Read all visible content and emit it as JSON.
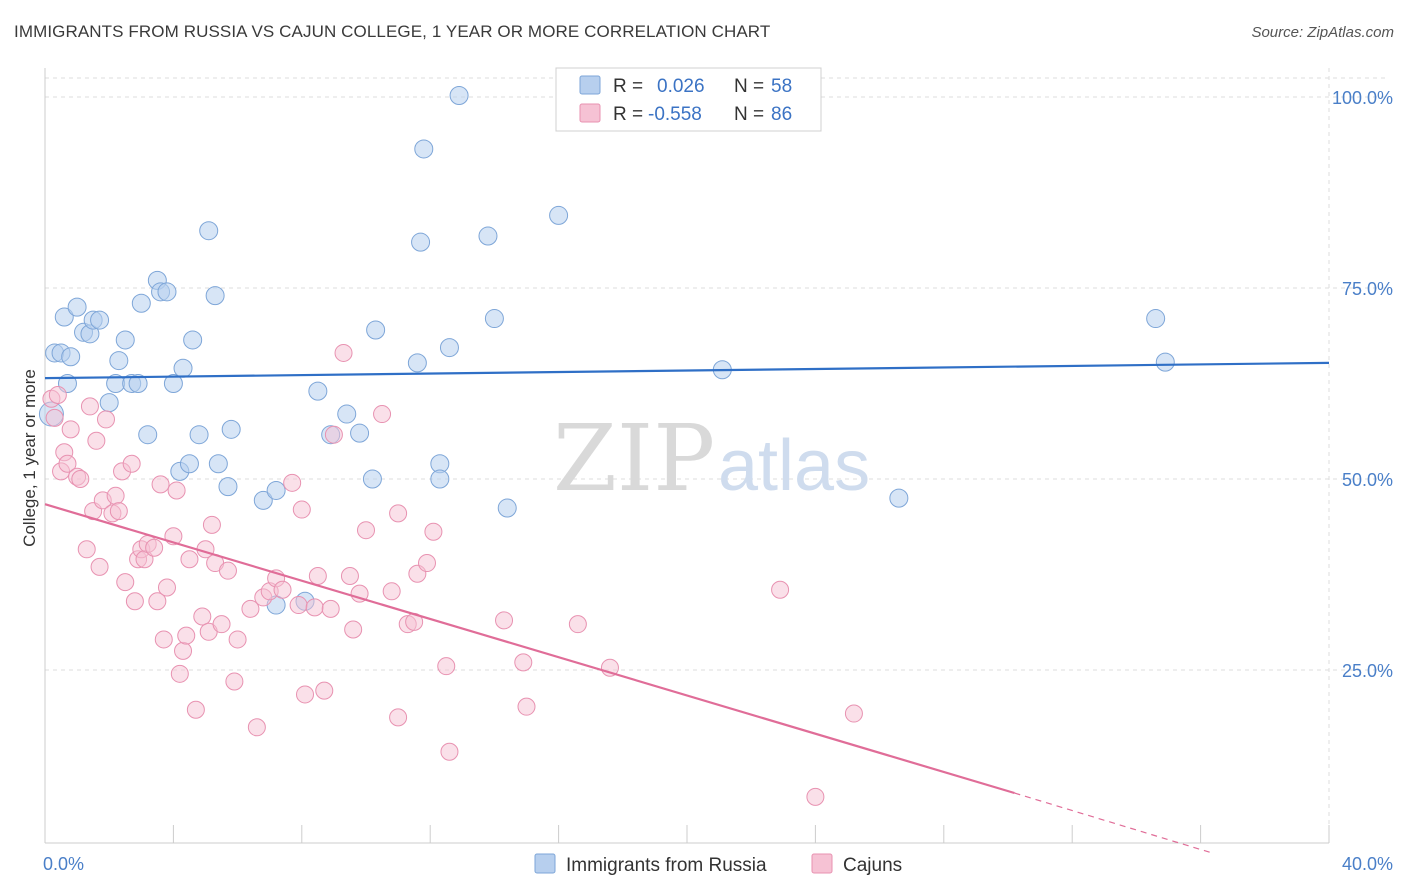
{
  "title": "IMMIGRANTS FROM RUSSIA VS CAJUN COLLEGE, 1 YEAR OR MORE CORRELATION CHART",
  "source": "Source: ZipAtlas.com",
  "watermark": {
    "zip": "ZIP",
    "atlas": "atlas"
  },
  "legend": {
    "rows": [
      {
        "r_label": "R =",
        "r_value": "0.026",
        "n_label": "N =",
        "n_value": "58"
      },
      {
        "r_label": "R =",
        "r_value": "-0.558",
        "n_label": "N =",
        "n_value": "86"
      }
    ]
  },
  "colors": {
    "blue_fill": "#b7cfee",
    "blue_stroke": "#7ea6d8",
    "blue_line": "#2f6fc6",
    "pink_fill": "#f6c2d4",
    "pink_stroke": "#e892b1",
    "pink_line": "#e06d98",
    "grid": "#dddddd",
    "axis_text": "#4a7fc8"
  },
  "chart_data": {
    "type": "scatter",
    "title": "IMMIGRANTS FROM RUSSIA VS CAJUN COLLEGE, 1 YEAR OR MORE CORRELATION CHART",
    "xlabel": "",
    "ylabel": "College, 1 year or more",
    "xlim": [
      0,
      40
    ],
    "ylim": [
      2,
      102
    ],
    "x_ticks": [
      0,
      40
    ],
    "x_tick_labels": [
      "0.0%",
      "40.0%"
    ],
    "y_ticks": [
      25,
      50,
      75,
      100
    ],
    "y_tick_labels": [
      "25.0%",
      "50.0%",
      "75.0%",
      "100.0%"
    ],
    "grid": true,
    "legend_position": "top-center",
    "series": [
      {
        "name": "Immigrants from Russia",
        "R": 0.026,
        "N": 58,
        "trend": {
          "x": [
            0,
            40
          ],
          "y": [
            63.2,
            65.2
          ]
        },
        "points": [
          [
            0.2,
            58.5
          ],
          [
            0.3,
            66.5
          ],
          [
            0.5,
            66.5
          ],
          [
            0.6,
            71.2
          ],
          [
            0.7,
            62.5
          ],
          [
            0.8,
            66.0
          ],
          [
            1.0,
            72.5
          ],
          [
            1.2,
            69.2
          ],
          [
            1.4,
            69.0
          ],
          [
            1.5,
            70.8
          ],
          [
            1.7,
            70.8
          ],
          [
            2.0,
            60.0
          ],
          [
            2.2,
            62.5
          ],
          [
            2.3,
            65.5
          ],
          [
            2.5,
            68.2
          ],
          [
            2.7,
            62.5
          ],
          [
            2.9,
            62.5
          ],
          [
            3.0,
            73.0
          ],
          [
            3.2,
            55.8
          ],
          [
            3.5,
            76.0
          ],
          [
            3.6,
            74.5
          ],
          [
            3.8,
            74.5
          ],
          [
            4.0,
            62.5
          ],
          [
            4.2,
            51.0
          ],
          [
            4.3,
            64.5
          ],
          [
            4.5,
            52.0
          ],
          [
            4.6,
            68.2
          ],
          [
            4.8,
            55.8
          ],
          [
            5.1,
            82.5
          ],
          [
            5.3,
            74.0
          ],
          [
            5.4,
            52.0
          ],
          [
            5.7,
            49.0
          ],
          [
            5.8,
            56.5
          ],
          [
            6.8,
            47.2
          ],
          [
            7.2,
            48.5
          ],
          [
            7.2,
            33.5
          ],
          [
            8.1,
            34.0
          ],
          [
            8.5,
            61.5
          ],
          [
            8.9,
            55.8
          ],
          [
            9.4,
            58.5
          ],
          [
            9.8,
            56.0
          ],
          [
            10.2,
            50.0
          ],
          [
            10.3,
            69.5
          ],
          [
            11.6,
            65.2
          ],
          [
            11.7,
            81.0
          ],
          [
            11.8,
            93.2
          ],
          [
            12.3,
            52.0
          ],
          [
            12.3,
            50.0
          ],
          [
            12.6,
            67.2
          ],
          [
            12.9,
            100.2
          ],
          [
            13.8,
            81.8
          ],
          [
            14.0,
            71.0
          ],
          [
            14.4,
            46.2
          ],
          [
            16.0,
            84.5
          ],
          [
            21.1,
            64.3
          ],
          [
            26.6,
            47.5
          ],
          [
            34.6,
            71.0
          ],
          [
            34.9,
            65.3
          ]
        ]
      },
      {
        "name": "Cajuns",
        "R": -0.558,
        "N": 86,
        "trend": {
          "x": [
            0,
            30.2
          ],
          "y": [
            46.7,
            8.9
          ]
        },
        "trend_dashed": {
          "x": [
            30.2,
            36.4
          ],
          "y": [
            8.9,
            1.0
          ]
        },
        "points": [
          [
            0.2,
            60.5
          ],
          [
            0.3,
            58.0
          ],
          [
            0.4,
            61.0
          ],
          [
            0.5,
            51.0
          ],
          [
            0.6,
            53.5
          ],
          [
            0.7,
            52.0
          ],
          [
            0.8,
            56.5
          ],
          [
            1.0,
            50.3
          ],
          [
            1.1,
            50.0
          ],
          [
            1.3,
            40.8
          ],
          [
            1.4,
            59.5
          ],
          [
            1.5,
            45.8
          ],
          [
            1.6,
            55.0
          ],
          [
            1.7,
            38.5
          ],
          [
            1.8,
            47.2
          ],
          [
            1.9,
            57.8
          ],
          [
            2.1,
            45.5
          ],
          [
            2.2,
            47.8
          ],
          [
            2.3,
            45.8
          ],
          [
            2.4,
            51.0
          ],
          [
            2.5,
            36.5
          ],
          [
            2.7,
            52.0
          ],
          [
            2.8,
            34.0
          ],
          [
            2.9,
            39.5
          ],
          [
            3.0,
            40.8
          ],
          [
            3.1,
            39.5
          ],
          [
            3.2,
            41.5
          ],
          [
            3.4,
            41.0
          ],
          [
            3.5,
            34.0
          ],
          [
            3.6,
            49.3
          ],
          [
            3.7,
            29.0
          ],
          [
            3.8,
            35.8
          ],
          [
            4.0,
            42.5
          ],
          [
            4.1,
            48.5
          ],
          [
            4.2,
            24.5
          ],
          [
            4.3,
            27.5
          ],
          [
            4.4,
            29.5
          ],
          [
            4.5,
            39.5
          ],
          [
            4.7,
            19.8
          ],
          [
            4.9,
            32.0
          ],
          [
            5.0,
            40.8
          ],
          [
            5.1,
            30.0
          ],
          [
            5.2,
            44.0
          ],
          [
            5.3,
            39.0
          ],
          [
            5.5,
            31.0
          ],
          [
            5.7,
            38.0
          ],
          [
            5.9,
            23.5
          ],
          [
            6.0,
            29.0
          ],
          [
            6.4,
            33.0
          ],
          [
            6.6,
            17.5
          ],
          [
            6.8,
            34.5
          ],
          [
            7.0,
            35.3
          ],
          [
            7.2,
            37.0
          ],
          [
            7.4,
            35.5
          ],
          [
            7.7,
            49.5
          ],
          [
            7.9,
            33.5
          ],
          [
            8.0,
            46.0
          ],
          [
            8.1,
            21.8
          ],
          [
            8.4,
            33.2
          ],
          [
            8.5,
            37.3
          ],
          [
            8.7,
            22.3
          ],
          [
            8.9,
            33.0
          ],
          [
            9.0,
            55.8
          ],
          [
            9.3,
            66.5
          ],
          [
            9.5,
            37.3
          ],
          [
            9.6,
            30.3
          ],
          [
            9.8,
            35.0
          ],
          [
            10.0,
            43.3
          ],
          [
            10.5,
            58.5
          ],
          [
            10.8,
            35.3
          ],
          [
            11.0,
            45.5
          ],
          [
            11.0,
            18.8
          ],
          [
            11.3,
            31.0
          ],
          [
            11.5,
            31.3
          ],
          [
            11.6,
            37.6
          ],
          [
            11.9,
            39.0
          ],
          [
            12.1,
            43.1
          ],
          [
            12.5,
            25.5
          ],
          [
            12.6,
            14.3
          ],
          [
            14.3,
            31.5
          ],
          [
            14.9,
            26.0
          ],
          [
            15.0,
            20.2
          ],
          [
            16.6,
            31.0
          ],
          [
            17.6,
            25.3
          ],
          [
            22.9,
            35.5
          ],
          [
            24.0,
            8.4
          ],
          [
            25.2,
            19.3
          ]
        ]
      }
    ]
  },
  "bottom_legend": [
    {
      "label": "Immigrants from Russia"
    },
    {
      "label": "Cajuns"
    }
  ]
}
